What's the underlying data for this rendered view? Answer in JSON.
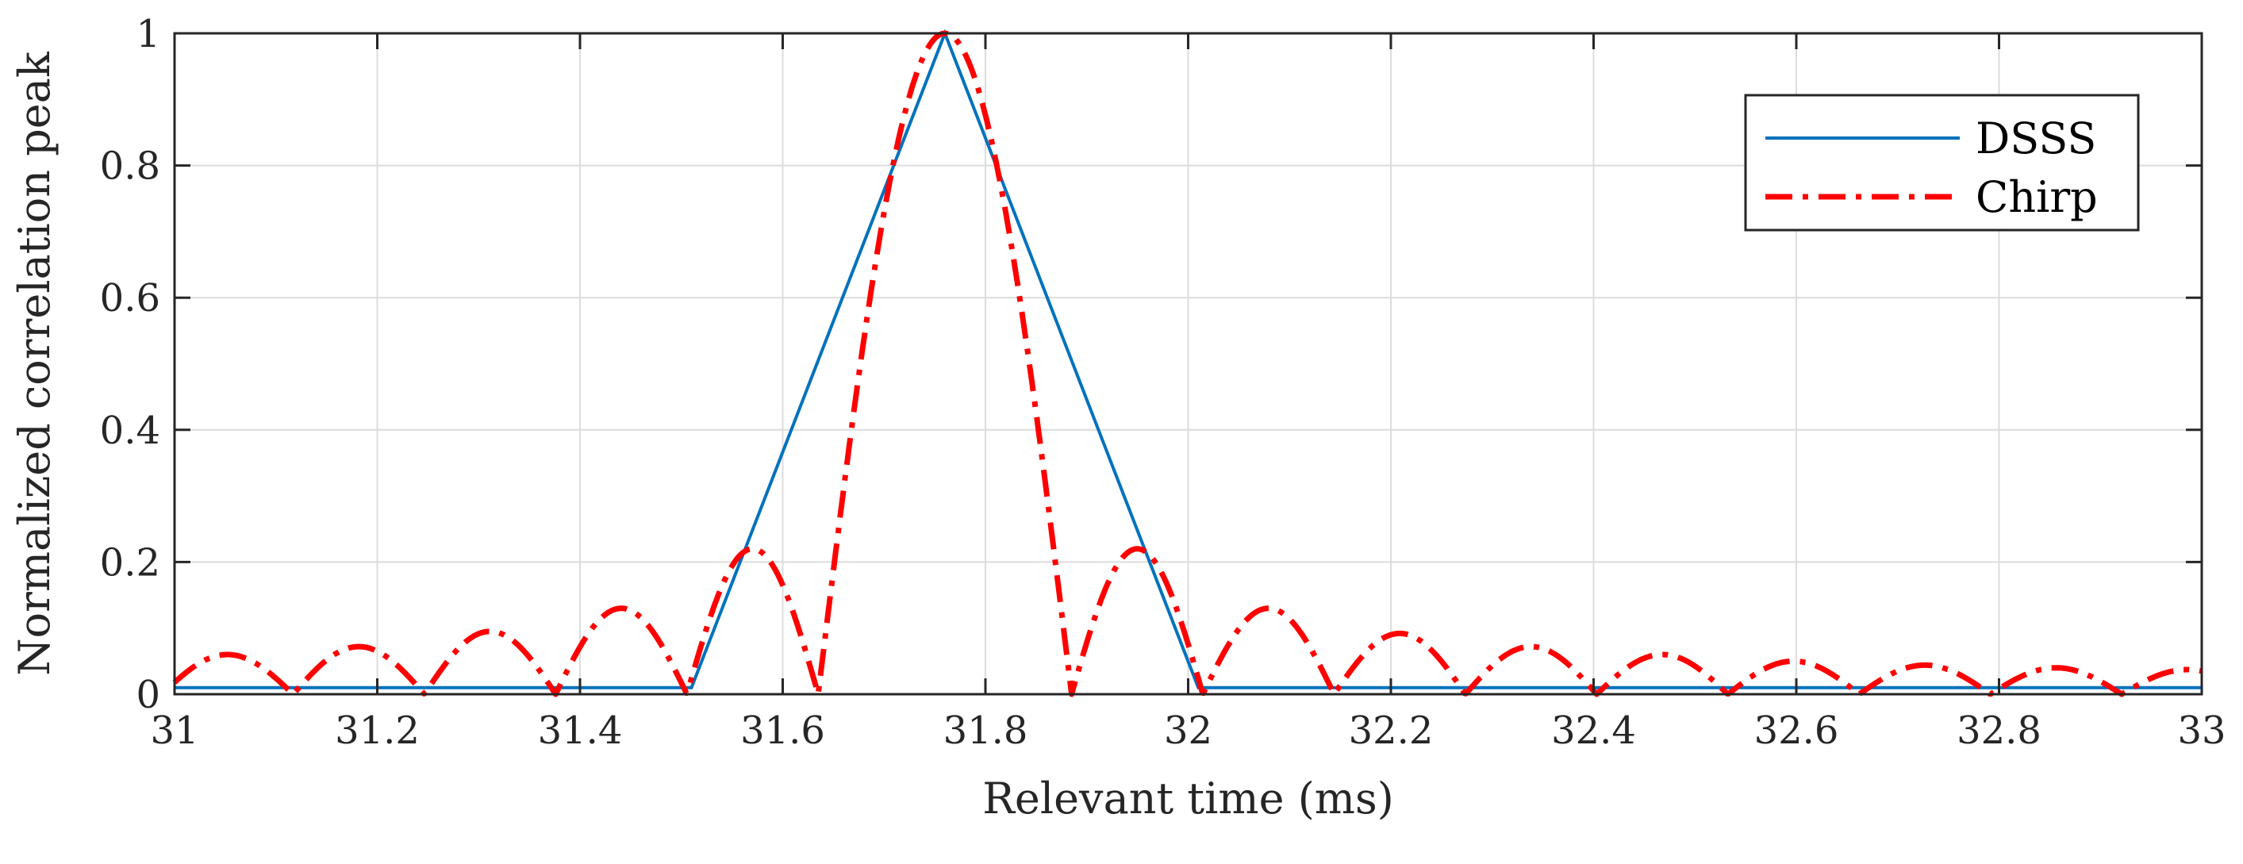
{
  "chart_data": {
    "type": "line",
    "title": "",
    "xlabel": "Relevant time (ms)",
    "ylabel": "Normalized correlation peak",
    "xlim": [
      31,
      33
    ],
    "ylim": [
      0,
      1
    ],
    "xticks": [
      31,
      31.2,
      31.4,
      31.6,
      31.8,
      32,
      32.2,
      32.4,
      32.6,
      32.8,
      33
    ],
    "xtick_labels": [
      "31",
      "31.2",
      "31.4",
      "31.6",
      "31.8",
      "32",
      "32.2",
      "32.4",
      "32.6",
      "32.8",
      "33"
    ],
    "yticks": [
      0,
      0.2,
      0.4,
      0.6,
      0.8,
      1
    ],
    "ytick_labels": [
      "0",
      "0.2",
      "0.4",
      "0.6",
      "0.8",
      "1"
    ],
    "grid": true,
    "legend_position": "top-right",
    "series": [
      {
        "name": "DSSS",
        "color": "#0072BD",
        "style": "solid",
        "x": [
          31,
          31.51,
          31.76,
          32.01,
          33
        ],
        "y": [
          0.01,
          0.01,
          1.0,
          0.01,
          0.01
        ]
      },
      {
        "name": "Chirp",
        "color": "#FF0000",
        "style": "dash-dot",
        "model": {
          "center": 31.76,
          "mainlobe_halfwidth": 0.125,
          "lobe_width": 0.1295,
          "peak": 1.0,
          "sidelobe_peaks_right": [
            0.22,
            0.13,
            0.092,
            0.072,
            0.06,
            0.05,
            0.044,
            0.04
          ],
          "sidelobe_peaks_left": [
            0.22,
            0.13,
            0.095,
            0.072,
            0.06
          ],
          "left_edge_value": 0.01,
          "right_edge_value": 0.035
        }
      }
    ]
  }
}
